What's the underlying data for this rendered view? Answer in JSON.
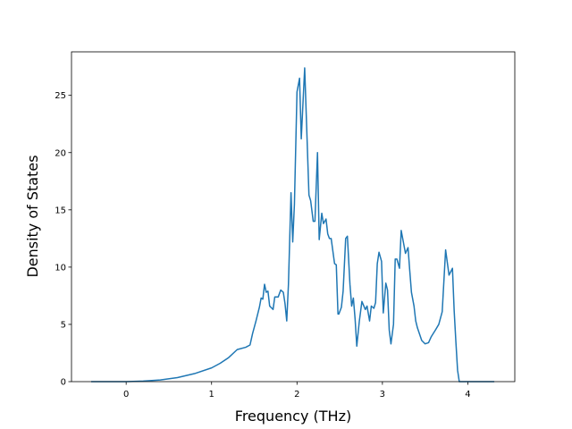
{
  "chart_data": {
    "type": "line",
    "x_label": "Frequency (THz)",
    "y_label": "Density of States",
    "x": [
      -0.41,
      0,
      0.2,
      0.4,
      0.6,
      0.8,
      1.0,
      1.1,
      1.2,
      1.3,
      1.4,
      1.45,
      1.48,
      1.52,
      1.56,
      1.58,
      1.6,
      1.62,
      1.64,
      1.66,
      1.68,
      1.72,
      1.74,
      1.78,
      1.81,
      1.84,
      1.86,
      1.88,
      1.9,
      1.93,
      1.95,
      1.97,
      2.0,
      2.03,
      2.05,
      2.09,
      2.14,
      2.16,
      2.19,
      2.21,
      2.24,
      2.26,
      2.29,
      2.31,
      2.34,
      2.36,
      2.38,
      2.4,
      2.44,
      2.46,
      2.48,
      2.49,
      2.52,
      2.54,
      2.57,
      2.59,
      2.62,
      2.64,
      2.66,
      2.68,
      2.7,
      2.73,
      2.76,
      2.8,
      2.82,
      2.85,
      2.87,
      2.9,
      2.92,
      2.94,
      2.96,
      2.99,
      3.01,
      3.04,
      3.06,
      3.08,
      3.1,
      3.13,
      3.15,
      3.17,
      3.2,
      3.22,
      3.25,
      3.27,
      3.3,
      3.32,
      3.34,
      3.37,
      3.39,
      3.41,
      3.46,
      3.5,
      3.54,
      3.57,
      3.62,
      3.66,
      3.7,
      3.74,
      3.78,
      3.8,
      3.82,
      3.84,
      3.86,
      3.88,
      3.9,
      3.94,
      4.31
    ],
    "values": [
      0,
      0,
      0.05,
      0.15,
      0.35,
      0.7,
      1.2,
      1.6,
      2.1,
      2.8,
      3.0,
      3.2,
      4.2,
      5.3,
      6.5,
      7.3,
      7.2,
      8.5,
      7.8,
      7.9,
      6.6,
      6.3,
      7.4,
      7.4,
      8.0,
      7.8,
      6.8,
      5.3,
      8.5,
      16.5,
      12.2,
      15.5,
      25.3,
      26.5,
      21.2,
      27.4,
      16.3,
      15.8,
      14.0,
      14.0,
      20.0,
      12.4,
      14.7,
      13.8,
      14.2,
      12.9,
      12.5,
      12.5,
      10.3,
      10.2,
      5.9,
      5.9,
      6.5,
      7.9,
      12.5,
      12.7,
      8.5,
      6.6,
      7.3,
      5.5,
      3.1,
      5.3,
      7.0,
      6.3,
      6.6,
      5.3,
      6.6,
      6.4,
      6.9,
      10.3,
      11.3,
      10.5,
      6.0,
      8.6,
      8.0,
      4.5,
      3.3,
      5.0,
      10.7,
      10.7,
      9.9,
      13.2,
      12.0,
      11.2,
      11.7,
      9.7,
      7.8,
      6.6,
      5.3,
      4.7,
      3.6,
      3.3,
      3.4,
      3.9,
      4.5,
      5.0,
      6.1,
      11.5,
      9.3,
      9.6,
      9.9,
      6.2,
      3.5,
      1.0,
      0,
      0,
      0
    ],
    "color": "#1f77b4",
    "xlim": [
      -0.64,
      4.55
    ],
    "ylim": [
      0,
      28.8
    ],
    "xticks": [
      0,
      1,
      2,
      3,
      4
    ],
    "yticks": [
      0,
      5,
      10,
      15,
      20,
      25
    ]
  }
}
